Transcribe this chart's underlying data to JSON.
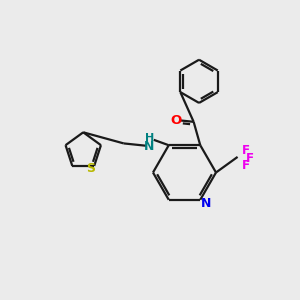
{
  "background_color": "#ebebeb",
  "figsize": [
    3.0,
    3.0
  ],
  "dpi": 100,
  "bond_color": "#1a1a1a",
  "lw": 1.6,
  "atom_colors": {
    "O": "#ff0000",
    "N": "#0000ee",
    "F": "#ee00ee",
    "S": "#b8b800",
    "NH": "#008080"
  },
  "xlim": [
    0,
    10
  ],
  "ylim": [
    0,
    10
  ]
}
